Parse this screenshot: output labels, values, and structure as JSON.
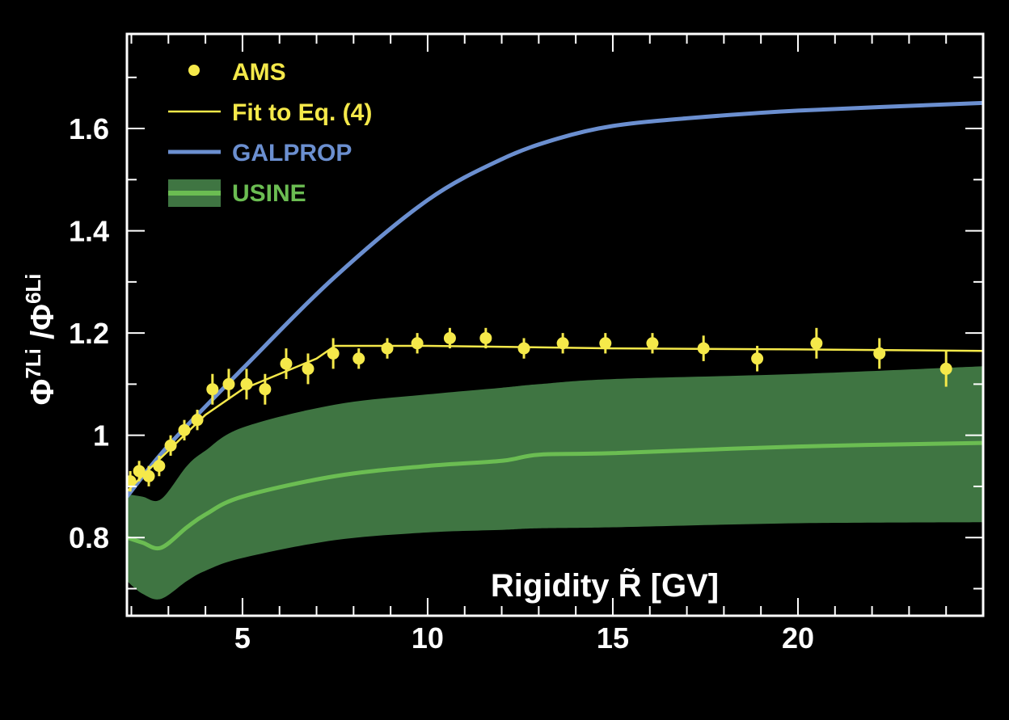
{
  "chart_data": {
    "type": "line",
    "xlabel": "Rigidity  R̃ [GV]",
    "ylabel_parts": [
      "Φ",
      "7",
      "Li",
      " /Φ",
      "6",
      "Li"
    ],
    "xlim": [
      1.88,
      25.0
    ],
    "ylim": [
      0.647,
      1.785
    ],
    "x_ticks": [
      5,
      10,
      15,
      20
    ],
    "x_tick_labels": [
      "5",
      "10",
      "15",
      "20"
    ],
    "y_ticks": [
      0.8,
      1,
      1.2,
      1.4,
      1.6
    ],
    "y_tick_labels": [
      "0.8",
      "1",
      "1.2",
      "1.4",
      "1.6"
    ],
    "grid": false,
    "legend_position": "top-left",
    "colors": {
      "ams": "#f5e94a",
      "fit": "#f5e94a",
      "galprop": "#6b8fd0",
      "usine_line": "#6bbd52",
      "usine_band": "#3f7542",
      "axes": "#ffffff",
      "background": "#000000"
    },
    "legend": [
      {
        "key": "ams",
        "label": "AMS"
      },
      {
        "key": "fit",
        "label": "Fit to Eq. (4)"
      },
      {
        "key": "galprop",
        "label": "GALPROP"
      },
      {
        "key": "usine",
        "label": "USINE"
      }
    ],
    "series": [
      {
        "name": "AMS",
        "type": "scatter",
        "x": [
          1.97,
          2.21,
          2.47,
          2.75,
          3.06,
          3.43,
          3.78,
          4.19,
          4.63,
          5.11,
          5.61,
          6.18,
          6.77,
          7.45,
          8.14,
          8.91,
          9.72,
          10.6,
          11.57,
          12.6,
          13.65,
          14.8,
          16.07,
          17.45,
          18.9,
          20.5,
          22.2,
          24.0
        ],
        "y": [
          0.91,
          0.93,
          0.92,
          0.94,
          0.98,
          1.01,
          1.03,
          1.09,
          1.1,
          1.1,
          1.09,
          1.14,
          1.13,
          1.16,
          1.15,
          1.17,
          1.18,
          1.19,
          1.19,
          1.17,
          1.18,
          1.18,
          1.18,
          1.17,
          1.15,
          1.18,
          1.16,
          1.13
        ],
        "err": [
          0.02,
          0.02,
          0.02,
          0.02,
          0.02,
          0.02,
          0.02,
          0.03,
          0.03,
          0.03,
          0.03,
          0.03,
          0.03,
          0.03,
          0.02,
          0.02,
          0.02,
          0.02,
          0.02,
          0.02,
          0.02,
          0.02,
          0.02,
          0.025,
          0.025,
          0.03,
          0.03,
          0.035
        ]
      },
      {
        "name": "Fit to Eq. (4)",
        "type": "line",
        "x": [
          1.88,
          2.5,
          3,
          4,
          5,
          6,
          7,
          7.5,
          10,
          15,
          20,
          25
        ],
        "y": [
          0.89,
          0.935,
          0.97,
          1.04,
          1.09,
          1.12,
          1.15,
          1.175,
          1.175,
          1.17,
          1.168,
          1.165
        ]
      },
      {
        "name": "GALPROP",
        "type": "line",
        "x": [
          1.88,
          3,
          5,
          7.5,
          10,
          12,
          13.5,
          15,
          17,
          20,
          25
        ],
        "y": [
          0.88,
          0.98,
          1.13,
          1.31,
          1.46,
          1.54,
          1.58,
          1.605,
          1.62,
          1.635,
          1.65
        ]
      },
      {
        "name": "USINE",
        "type": "band",
        "x": [
          1.88,
          2.3,
          2.8,
          3.5,
          4,
          5,
          7.5,
          10,
          12,
          13,
          15,
          20,
          25
        ],
        "y": [
          0.8,
          0.79,
          0.78,
          0.82,
          0.845,
          0.88,
          0.92,
          0.94,
          0.95,
          0.962,
          0.965,
          0.978,
          0.985
        ],
        "upper": [
          0.885,
          0.88,
          0.875,
          0.94,
          0.97,
          1.015,
          1.06,
          1.08,
          1.093,
          1.1,
          1.11,
          1.12,
          1.135
        ],
        "lower": [
          0.715,
          0.69,
          0.68,
          0.715,
          0.735,
          0.76,
          0.795,
          0.81,
          0.815,
          0.818,
          0.82,
          0.828,
          0.83
        ]
      }
    ]
  }
}
